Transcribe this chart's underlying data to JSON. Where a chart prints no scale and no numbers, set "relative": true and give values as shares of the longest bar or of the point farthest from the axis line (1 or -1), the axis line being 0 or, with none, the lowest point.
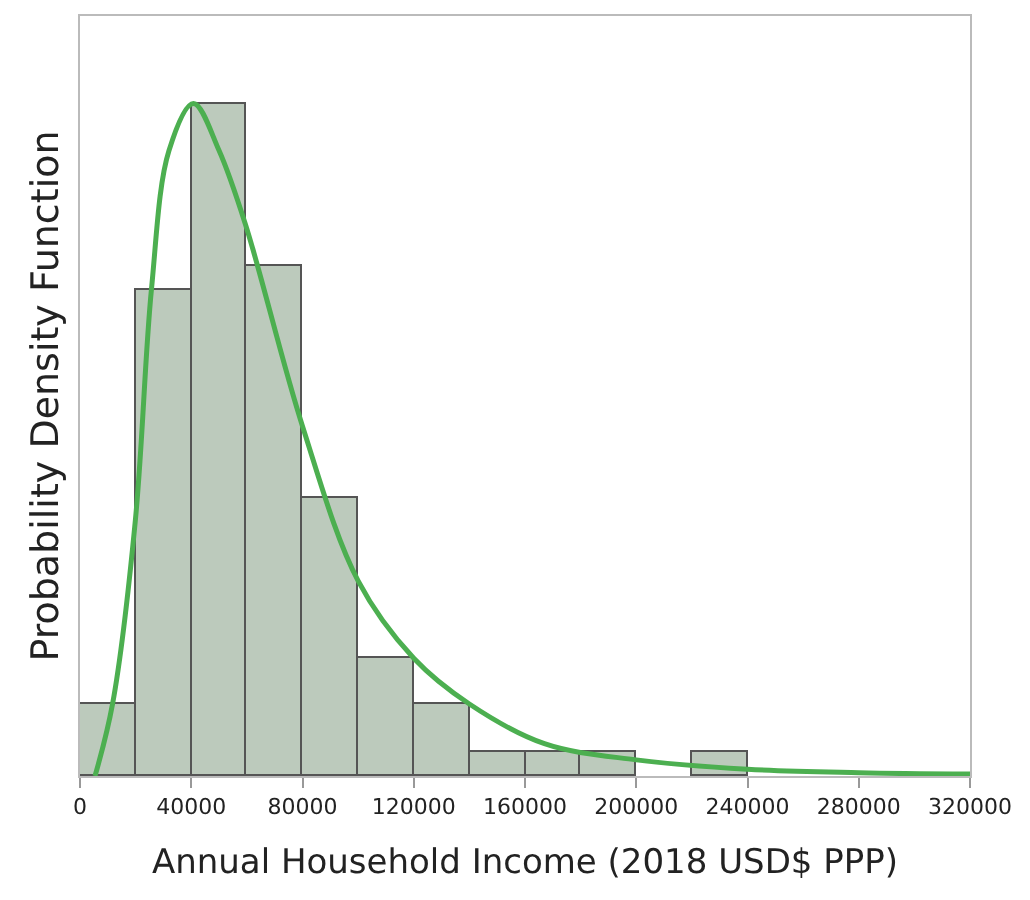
{
  "chart_data": {
    "type": "histogram",
    "relative": true,
    "xlabel": "Annual Household Income (2018 USD$ PPP)",
    "ylabel": "Probability Density Function",
    "bins": [
      0,
      20000,
      40000,
      60000,
      80000,
      100000,
      120000,
      140000,
      160000,
      180000,
      200000,
      220000,
      240000,
      260000,
      280000,
      300000,
      320000
    ],
    "xlim": [
      0,
      320000
    ],
    "xticks": [
      0,
      40000,
      80000,
      120000,
      160000,
      200000,
      240000,
      280000,
      320000
    ],
    "series": [
      {
        "color": "#bccabc",
        "values": [
          0.107,
          0.724,
          1,
          0.757,
          0.414,
          0.175,
          0.107,
          0.036,
          0.036,
          0.036,
          0,
          0.036,
          0,
          0,
          0,
          0
        ]
      },
      {
        "type": "line",
        "color": "#4caf50",
        "x": [
          5400,
          11700,
          19900,
          25700,
          32000,
          40800,
          50000,
          59500,
          80000,
          100000,
          120000,
          140000,
          167000,
          200000,
          240000,
          280000,
          320000
        ],
        "values": [
          0,
          0.107,
          0.38,
          0.724,
          0.93,
          1,
          0.93,
          0.82,
          0.52,
          0.29,
          0.175,
          0.107,
          0.048,
          0.024,
          0.01,
          0.005,
          0.003
        ]
      }
    ]
  }
}
